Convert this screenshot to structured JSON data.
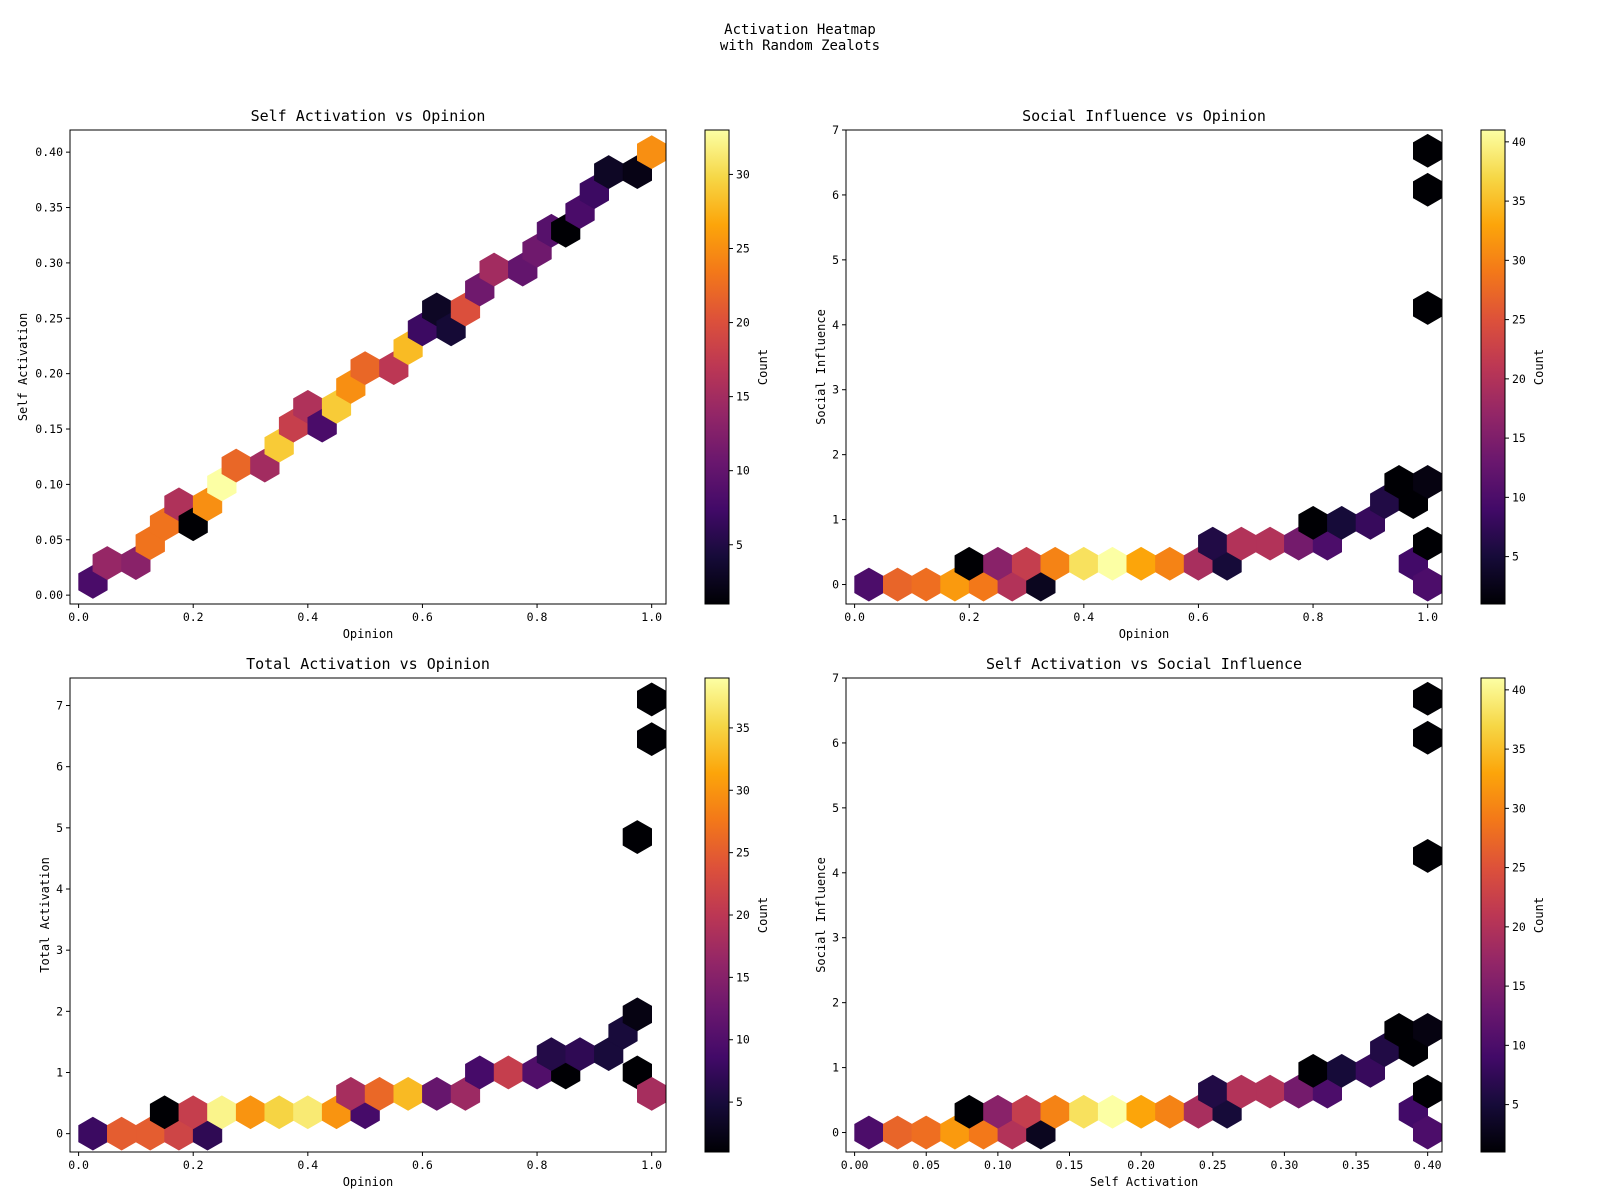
{
  "title": "Activation Heatmap\nwith Random Zealots",
  "colormap": "inferno",
  "chart_data": [
    {
      "type": "heatmap",
      "subtype": "hexbin",
      "title": "Self Activation vs Opinion",
      "xlabel": "Opinion",
      "ylabel": "Self Activation",
      "xlim": [
        -0.015,
        1.025
      ],
      "ylim": [
        -0.008,
        0.42
      ],
      "xticks": [
        0.0,
        0.2,
        0.4,
        0.6,
        0.8,
        1.0
      ],
      "xtick_labels": [
        "0.0",
        "0.2",
        "0.4",
        "0.6",
        "0.8",
        "1.0"
      ],
      "yticks": [
        0.0,
        0.05,
        0.1,
        0.15,
        0.2,
        0.25,
        0.3,
        0.35,
        0.4
      ],
      "ytick_labels": [
        "0.00",
        "0.05",
        "0.10",
        "0.15",
        "0.20",
        "0.25",
        "0.30",
        "0.35",
        "0.40"
      ],
      "hex_size": 0.025,
      "colorbar": {
        "label": "Count",
        "min": 1,
        "max": 33,
        "ticks": [
          5,
          10,
          15,
          20,
          25,
          30
        ]
      },
      "cells": [
        {
          "x": 0.025,
          "y": 0.012,
          "count": 8
        },
        {
          "x": 0.05,
          "y": 0.029,
          "count": 14
        },
        {
          "x": 0.1,
          "y": 0.029,
          "count": 13
        },
        {
          "x": 0.125,
          "y": 0.047,
          "count": 23
        },
        {
          "x": 0.15,
          "y": 0.064,
          "count": 23
        },
        {
          "x": 0.175,
          "y": 0.082,
          "count": 16
        },
        {
          "x": 0.2,
          "y": 0.064,
          "count": 1
        },
        {
          "x": 0.225,
          "y": 0.082,
          "count": 25
        },
        {
          "x": 0.25,
          "y": 0.1,
          "count": 33
        },
        {
          "x": 0.275,
          "y": 0.117,
          "count": 22
        },
        {
          "x": 0.325,
          "y": 0.117,
          "count": 15
        },
        {
          "x": 0.35,
          "y": 0.135,
          "count": 29
        },
        {
          "x": 0.375,
          "y": 0.153,
          "count": 18
        },
        {
          "x": 0.4,
          "y": 0.17,
          "count": 16
        },
        {
          "x": 0.425,
          "y": 0.153,
          "count": 8
        },
        {
          "x": 0.45,
          "y": 0.17,
          "count": 29
        },
        {
          "x": 0.475,
          "y": 0.188,
          "count": 25
        },
        {
          "x": 0.5,
          "y": 0.205,
          "count": 22
        },
        {
          "x": 0.55,
          "y": 0.205,
          "count": 17
        },
        {
          "x": 0.575,
          "y": 0.223,
          "count": 28
        },
        {
          "x": 0.6,
          "y": 0.24,
          "count": 7
        },
        {
          "x": 0.625,
          "y": 0.258,
          "count": 3
        },
        {
          "x": 0.65,
          "y": 0.24,
          "count": 4
        },
        {
          "x": 0.675,
          "y": 0.258,
          "count": 20
        },
        {
          "x": 0.7,
          "y": 0.276,
          "count": 11
        },
        {
          "x": 0.725,
          "y": 0.294,
          "count": 15
        },
        {
          "x": 0.775,
          "y": 0.294,
          "count": 10
        },
        {
          "x": 0.8,
          "y": 0.311,
          "count": 11
        },
        {
          "x": 0.825,
          "y": 0.329,
          "count": 9
        },
        {
          "x": 0.85,
          "y": 0.329,
          "count": 1
        },
        {
          "x": 0.875,
          "y": 0.346,
          "count": 8
        },
        {
          "x": 0.9,
          "y": 0.364,
          "count": 7
        },
        {
          "x": 0.925,
          "y": 0.382,
          "count": 3
        },
        {
          "x": 0.975,
          "y": 0.382,
          "count": 2
        },
        {
          "x": 1.0,
          "y": 0.4,
          "count": 25
        }
      ]
    },
    {
      "type": "heatmap",
      "subtype": "hexbin",
      "title": "Social Influence vs Opinion",
      "xlabel": "Opinion",
      "ylabel": "Social Influence",
      "xlim": [
        -0.015,
        1.025
      ],
      "ylim": [
        -0.3,
        7.0
      ],
      "xticks": [
        0.0,
        0.2,
        0.4,
        0.6,
        0.8,
        1.0
      ],
      "xtick_labels": [
        "0.0",
        "0.2",
        "0.4",
        "0.6",
        "0.8",
        "1.0"
      ],
      "yticks": [
        0,
        1,
        2,
        3,
        4,
        5,
        6,
        7
      ],
      "ytick_labels": [
        "0",
        "1",
        "2",
        "3",
        "4",
        "5",
        "6",
        "7"
      ],
      "hex_size": 0.025,
      "colorbar": {
        "label": "Count",
        "min": 1,
        "max": 41,
        "ticks": [
          5,
          10,
          15,
          20,
          25,
          30,
          35,
          40
        ]
      },
      "cells": [
        {
          "x": 0.025,
          "y": 0.0,
          "count": 10
        },
        {
          "x": 0.075,
          "y": 0.0,
          "count": 27
        },
        {
          "x": 0.125,
          "y": 0.0,
          "count": 28
        },
        {
          "x": 0.175,
          "y": 0.0,
          "count": 32
        },
        {
          "x": 0.225,
          "y": 0.0,
          "count": 29
        },
        {
          "x": 0.275,
          "y": 0.0,
          "count": 20
        },
        {
          "x": 0.325,
          "y": 0.0,
          "count": 3
        },
        {
          "x": 0.2,
          "y": 0.32,
          "count": 1
        },
        {
          "x": 0.25,
          "y": 0.32,
          "count": 16
        },
        {
          "x": 0.3,
          "y": 0.32,
          "count": 22
        },
        {
          "x": 0.35,
          "y": 0.32,
          "count": 30
        },
        {
          "x": 0.4,
          "y": 0.32,
          "count": 38
        },
        {
          "x": 0.45,
          "y": 0.32,
          "count": 41
        },
        {
          "x": 0.5,
          "y": 0.32,
          "count": 33
        },
        {
          "x": 0.55,
          "y": 0.32,
          "count": 30
        },
        {
          "x": 0.6,
          "y": 0.32,
          "count": 19
        },
        {
          "x": 0.65,
          "y": 0.32,
          "count": 5
        },
        {
          "x": 0.625,
          "y": 0.63,
          "count": 6
        },
        {
          "x": 0.675,
          "y": 0.63,
          "count": 20
        },
        {
          "x": 0.725,
          "y": 0.63,
          "count": 20
        },
        {
          "x": 0.775,
          "y": 0.63,
          "count": 14
        },
        {
          "x": 0.825,
          "y": 0.63,
          "count": 10
        },
        {
          "x": 0.8,
          "y": 0.95,
          "count": 1
        },
        {
          "x": 0.85,
          "y": 0.95,
          "count": 5
        },
        {
          "x": 0.9,
          "y": 0.95,
          "count": 8
        },
        {
          "x": 0.925,
          "y": 1.27,
          "count": 6
        },
        {
          "x": 0.975,
          "y": 1.27,
          "count": 1
        },
        {
          "x": 0.95,
          "y": 1.58,
          "count": 1
        },
        {
          "x": 1.0,
          "y": 1.58,
          "count": 2
        },
        {
          "x": 0.975,
          "y": 0.32,
          "count": 9
        },
        {
          "x": 1.0,
          "y": 0.0,
          "count": 10
        },
        {
          "x": 1.0,
          "y": 0.63,
          "count": 1
        },
        {
          "x": 1.0,
          "y": 4.26,
          "count": 1
        },
        {
          "x": 1.0,
          "y": 6.08,
          "count": 1
        },
        {
          "x": 1.0,
          "y": 6.68,
          "count": 1
        }
      ]
    },
    {
      "type": "heatmap",
      "subtype": "hexbin",
      "title": "Total Activation vs Opinion",
      "xlabel": "Opinion",
      "ylabel": "Total Activation",
      "xlim": [
        -0.015,
        1.025
      ],
      "ylim": [
        -0.3,
        7.45
      ],
      "xticks": [
        0.0,
        0.2,
        0.4,
        0.6,
        0.8,
        1.0
      ],
      "xtick_labels": [
        "0.0",
        "0.2",
        "0.4",
        "0.6",
        "0.8",
        "1.0"
      ],
      "yticks": [
        0,
        1,
        2,
        3,
        4,
        5,
        6,
        7
      ],
      "ytick_labels": [
        "0",
        "1",
        "2",
        "3",
        "4",
        "5",
        "6",
        "7"
      ],
      "hex_size": 0.025,
      "colorbar": {
        "label": "Count",
        "min": 1,
        "max": 39,
        "ticks": [
          5,
          10,
          15,
          20,
          25,
          30,
          35
        ]
      },
      "cells": [
        {
          "x": 0.025,
          "y": 0.0,
          "count": 8
        },
        {
          "x": 0.075,
          "y": 0.0,
          "count": 25
        },
        {
          "x": 0.125,
          "y": 0.0,
          "count": 25
        },
        {
          "x": 0.175,
          "y": 0.0,
          "count": 22
        },
        {
          "x": 0.225,
          "y": 0.0,
          "count": 7
        },
        {
          "x": 0.15,
          "y": 0.35,
          "count": 1
        },
        {
          "x": 0.2,
          "y": 0.35,
          "count": 21
        },
        {
          "x": 0.25,
          "y": 0.35,
          "count": 38
        },
        {
          "x": 0.3,
          "y": 0.35,
          "count": 30
        },
        {
          "x": 0.35,
          "y": 0.35,
          "count": 35
        },
        {
          "x": 0.4,
          "y": 0.35,
          "count": 37
        },
        {
          "x": 0.45,
          "y": 0.35,
          "count": 30
        },
        {
          "x": 0.5,
          "y": 0.35,
          "count": 9
        },
        {
          "x": 0.475,
          "y": 0.65,
          "count": 18
        },
        {
          "x": 0.525,
          "y": 0.65,
          "count": 26
        },
        {
          "x": 0.575,
          "y": 0.65,
          "count": 33
        },
        {
          "x": 0.625,
          "y": 0.65,
          "count": 12
        },
        {
          "x": 0.675,
          "y": 0.65,
          "count": 17
        },
        {
          "x": 0.7,
          "y": 1.0,
          "count": 9
        },
        {
          "x": 0.75,
          "y": 1.0,
          "count": 21
        },
        {
          "x": 0.8,
          "y": 1.0,
          "count": 10
        },
        {
          "x": 0.85,
          "y": 1.0,
          "count": 1
        },
        {
          "x": 0.825,
          "y": 1.3,
          "count": 6
        },
        {
          "x": 0.875,
          "y": 1.3,
          "count": 7
        },
        {
          "x": 0.925,
          "y": 1.3,
          "count": 5
        },
        {
          "x": 0.95,
          "y": 1.65,
          "count": 5
        },
        {
          "x": 0.975,
          "y": 1.95,
          "count": 2
        },
        {
          "x": 0.975,
          "y": 1.0,
          "count": 1
        },
        {
          "x": 1.0,
          "y": 0.65,
          "count": 18
        },
        {
          "x": 0.975,
          "y": 4.85,
          "count": 1
        },
        {
          "x": 1.0,
          "y": 6.45,
          "count": 1
        },
        {
          "x": 1.0,
          "y": 7.1,
          "count": 1
        }
      ]
    },
    {
      "type": "heatmap",
      "subtype": "hexbin",
      "title": "Self Activation vs Social Influence",
      "xlabel": "Self Activation",
      "ylabel": "Social Influence",
      "xlim": [
        -0.006,
        0.41
      ],
      "ylim": [
        -0.3,
        7.0
      ],
      "xticks": [
        0.0,
        0.05,
        0.1,
        0.15,
        0.2,
        0.25,
        0.3,
        0.35,
        0.4
      ],
      "xtick_labels": [
        "0.00",
        "0.05",
        "0.10",
        "0.15",
        "0.20",
        "0.25",
        "0.30",
        "0.35",
        "0.40"
      ],
      "yticks": [
        0,
        1,
        2,
        3,
        4,
        5,
        6,
        7
      ],
      "ytick_labels": [
        "0",
        "1",
        "2",
        "3",
        "4",
        "5",
        "6",
        "7"
      ],
      "hex_size": 0.01,
      "colorbar": {
        "label": "Count",
        "min": 1,
        "max": 41,
        "ticks": [
          5,
          10,
          15,
          20,
          25,
          30,
          35,
          40
        ]
      },
      "cells": [
        {
          "x": 0.01,
          "y": 0.0,
          "count": 10
        },
        {
          "x": 0.03,
          "y": 0.0,
          "count": 27
        },
        {
          "x": 0.05,
          "y": 0.0,
          "count": 28
        },
        {
          "x": 0.07,
          "y": 0.0,
          "count": 32
        },
        {
          "x": 0.09,
          "y": 0.0,
          "count": 29
        },
        {
          "x": 0.11,
          "y": 0.0,
          "count": 20
        },
        {
          "x": 0.13,
          "y": 0.0,
          "count": 3
        },
        {
          "x": 0.08,
          "y": 0.32,
          "count": 1
        },
        {
          "x": 0.1,
          "y": 0.32,
          "count": 16
        },
        {
          "x": 0.12,
          "y": 0.32,
          "count": 22
        },
        {
          "x": 0.14,
          "y": 0.32,
          "count": 30
        },
        {
          "x": 0.16,
          "y": 0.32,
          "count": 38
        },
        {
          "x": 0.18,
          "y": 0.32,
          "count": 41
        },
        {
          "x": 0.2,
          "y": 0.32,
          "count": 33
        },
        {
          "x": 0.22,
          "y": 0.32,
          "count": 30
        },
        {
          "x": 0.24,
          "y": 0.32,
          "count": 19
        },
        {
          "x": 0.26,
          "y": 0.32,
          "count": 5
        },
        {
          "x": 0.25,
          "y": 0.63,
          "count": 6
        },
        {
          "x": 0.27,
          "y": 0.63,
          "count": 20
        },
        {
          "x": 0.29,
          "y": 0.63,
          "count": 20
        },
        {
          "x": 0.31,
          "y": 0.63,
          "count": 14
        },
        {
          "x": 0.33,
          "y": 0.63,
          "count": 10
        },
        {
          "x": 0.32,
          "y": 0.95,
          "count": 1
        },
        {
          "x": 0.34,
          "y": 0.95,
          "count": 5
        },
        {
          "x": 0.36,
          "y": 0.95,
          "count": 8
        },
        {
          "x": 0.37,
          "y": 1.27,
          "count": 6
        },
        {
          "x": 0.39,
          "y": 1.27,
          "count": 1
        },
        {
          "x": 0.38,
          "y": 1.58,
          "count": 1
        },
        {
          "x": 0.4,
          "y": 1.58,
          "count": 2
        },
        {
          "x": 0.39,
          "y": 0.32,
          "count": 9
        },
        {
          "x": 0.4,
          "y": 0.0,
          "count": 10
        },
        {
          "x": 0.4,
          "y": 0.63,
          "count": 1
        },
        {
          "x": 0.4,
          "y": 4.26,
          "count": 1
        },
        {
          "x": 0.4,
          "y": 6.08,
          "count": 1
        },
        {
          "x": 0.4,
          "y": 6.68,
          "count": 1
        }
      ]
    }
  ]
}
